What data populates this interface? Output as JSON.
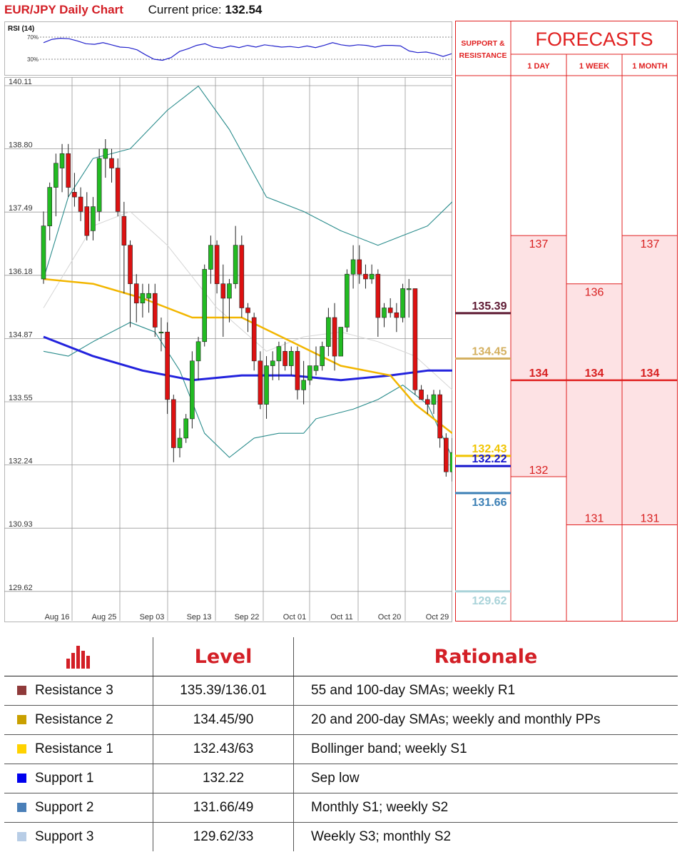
{
  "header": {
    "pair": "EUR/JPY Daily Chart",
    "current_label": "Current price:",
    "current_value": "132.54"
  },
  "rsi": {
    "label": "RSI (14)",
    "level_high": "70%",
    "level_low": "30%",
    "values": [
      60,
      66,
      68,
      67,
      63,
      58,
      57,
      60,
      56,
      52,
      51,
      47,
      38,
      30,
      28,
      33,
      44,
      49,
      55,
      58,
      52,
      50,
      54,
      51,
      55,
      52,
      56,
      54,
      52,
      53,
      51,
      54,
      51,
      55,
      60,
      56,
      54,
      56,
      55,
      52,
      55,
      55,
      54,
      45,
      42,
      43,
      40,
      35,
      40
    ]
  },
  "chart_data": {
    "type": "candlestick",
    "title": "EUR/JPY Daily Chart",
    "x_tick_labels": [
      "Aug 16",
      "Aug 25",
      "Sep 03",
      "Sep 13",
      "Sep 22",
      "Oct 01",
      "Oct 11",
      "Oct 20",
      "Oct 29"
    ],
    "y_tick_labels": [
      "140.11",
      "138.80",
      "137.49",
      "136.18",
      "134.87",
      "133.55",
      "132.24",
      "130.93",
      "129.62"
    ],
    "ylim": [
      129.5,
      140.2
    ],
    "grid": true,
    "candles": [
      {
        "o": 136.1,
        "h": 137.5,
        "l": 136.0,
        "c": 137.2
      },
      {
        "o": 137.2,
        "h": 138.1,
        "l": 136.9,
        "c": 138.0
      },
      {
        "o": 138.0,
        "h": 138.7,
        "l": 137.4,
        "c": 138.5
      },
      {
        "o": 138.4,
        "h": 138.9,
        "l": 137.9,
        "c": 138.7
      },
      {
        "o": 138.7,
        "h": 138.9,
        "l": 137.8,
        "c": 138.0
      },
      {
        "o": 137.9,
        "h": 138.3,
        "l": 137.6,
        "c": 137.8
      },
      {
        "o": 137.8,
        "h": 138.0,
        "l": 137.3,
        "c": 137.5
      },
      {
        "o": 137.6,
        "h": 137.9,
        "l": 136.9,
        "c": 137.0
      },
      {
        "o": 137.1,
        "h": 137.8,
        "l": 136.9,
        "c": 137.6
      },
      {
        "o": 137.5,
        "h": 138.8,
        "l": 137.3,
        "c": 138.6
      },
      {
        "o": 138.6,
        "h": 139.0,
        "l": 138.2,
        "c": 138.8
      },
      {
        "o": 138.6,
        "h": 138.8,
        "l": 138.1,
        "c": 138.4
      },
      {
        "o": 138.4,
        "h": 138.6,
        "l": 137.4,
        "c": 137.5
      },
      {
        "o": 137.4,
        "h": 137.7,
        "l": 135.8,
        "c": 136.8
      },
      {
        "o": 136.8,
        "h": 136.9,
        "l": 135.1,
        "c": 136.0
      },
      {
        "o": 136.0,
        "h": 136.2,
        "l": 135.2,
        "c": 135.6
      },
      {
        "o": 135.6,
        "h": 136.0,
        "l": 135.3,
        "c": 135.8
      },
      {
        "o": 135.7,
        "h": 136.0,
        "l": 135.4,
        "c": 135.8
      },
      {
        "o": 135.8,
        "h": 136.0,
        "l": 134.9,
        "c": 135.1
      },
      {
        "o": 135.0,
        "h": 135.3,
        "l": 134.6,
        "c": 135.0
      },
      {
        "o": 135.0,
        "h": 135.2,
        "l": 133.3,
        "c": 133.6
      },
      {
        "o": 133.6,
        "h": 133.7,
        "l": 132.3,
        "c": 132.6
      },
      {
        "o": 132.6,
        "h": 133.0,
        "l": 132.4,
        "c": 132.8
      },
      {
        "o": 132.8,
        "h": 133.3,
        "l": 132.7,
        "c": 133.2
      },
      {
        "o": 133.2,
        "h": 134.6,
        "l": 133.0,
        "c": 134.4
      },
      {
        "o": 134.4,
        "h": 134.9,
        "l": 134.0,
        "c": 134.8
      },
      {
        "o": 134.8,
        "h": 136.4,
        "l": 134.7,
        "c": 136.3
      },
      {
        "o": 136.3,
        "h": 137.0,
        "l": 136.0,
        "c": 136.8
      },
      {
        "o": 136.8,
        "h": 136.9,
        "l": 135.8,
        "c": 136.0
      },
      {
        "o": 136.0,
        "h": 136.4,
        "l": 134.9,
        "c": 135.7
      },
      {
        "o": 135.7,
        "h": 136.1,
        "l": 135.2,
        "c": 136.0
      },
      {
        "o": 136.0,
        "h": 137.2,
        "l": 135.9,
        "c": 136.8
      },
      {
        "o": 136.8,
        "h": 137.0,
        "l": 135.3,
        "c": 135.5
      },
      {
        "o": 135.5,
        "h": 135.6,
        "l": 135.0,
        "c": 135.4
      },
      {
        "o": 135.3,
        "h": 135.4,
        "l": 134.2,
        "c": 134.4
      },
      {
        "o": 134.4,
        "h": 134.6,
        "l": 133.4,
        "c": 133.5
      },
      {
        "o": 133.5,
        "h": 134.5,
        "l": 133.2,
        "c": 134.3
      },
      {
        "o": 134.3,
        "h": 134.6,
        "l": 134.0,
        "c": 134.4
      },
      {
        "o": 134.4,
        "h": 134.8,
        "l": 134.0,
        "c": 134.7
      },
      {
        "o": 134.6,
        "h": 134.8,
        "l": 134.2,
        "c": 134.3
      },
      {
        "o": 134.3,
        "h": 134.7,
        "l": 134.1,
        "c": 134.6
      },
      {
        "o": 134.6,
        "h": 134.7,
        "l": 133.6,
        "c": 133.8
      },
      {
        "o": 133.8,
        "h": 134.4,
        "l": 133.5,
        "c": 134.0
      },
      {
        "o": 134.0,
        "h": 134.3,
        "l": 133.9,
        "c": 134.3
      },
      {
        "o": 134.2,
        "h": 134.7,
        "l": 134.1,
        "c": 134.3
      },
      {
        "o": 134.3,
        "h": 134.8,
        "l": 134.2,
        "c": 134.7
      },
      {
        "o": 134.7,
        "h": 135.5,
        "l": 134.5,
        "c": 135.3
      },
      {
        "o": 135.3,
        "h": 135.6,
        "l": 134.2,
        "c": 134.5
      },
      {
        "o": 134.5,
        "h": 135.1,
        "l": 134.5,
        "c": 135.1
      },
      {
        "o": 135.1,
        "h": 136.3,
        "l": 135.0,
        "c": 136.2
      },
      {
        "o": 136.2,
        "h": 136.8,
        "l": 135.9,
        "c": 136.5
      },
      {
        "o": 136.5,
        "h": 136.8,
        "l": 136.0,
        "c": 136.2
      },
      {
        "o": 136.2,
        "h": 136.4,
        "l": 135.9,
        "c": 136.1
      },
      {
        "o": 136.1,
        "h": 136.4,
        "l": 136.0,
        "c": 136.2
      },
      {
        "o": 136.2,
        "h": 136.3,
        "l": 134.9,
        "c": 135.3
      },
      {
        "o": 135.3,
        "h": 135.6,
        "l": 135.1,
        "c": 135.5
      },
      {
        "o": 135.5,
        "h": 135.7,
        "l": 135.3,
        "c": 135.4
      },
      {
        "o": 135.4,
        "h": 135.6,
        "l": 135.0,
        "c": 135.3
      },
      {
        "o": 135.3,
        "h": 136.0,
        "l": 135.2,
        "c": 135.9
      },
      {
        "o": 135.9,
        "h": 136.1,
        "l": 135.3,
        "c": 135.9
      },
      {
        "o": 135.9,
        "h": 135.9,
        "l": 133.7,
        "c": 133.8
      },
      {
        "o": 133.8,
        "h": 133.9,
        "l": 133.6,
        "c": 133.6
      },
      {
        "o": 133.6,
        "h": 133.7,
        "l": 133.3,
        "c": 133.5
      },
      {
        "o": 133.5,
        "h": 133.8,
        "l": 133.3,
        "c": 133.7
      },
      {
        "o": 133.7,
        "h": 133.8,
        "l": 132.6,
        "c": 132.8
      },
      {
        "o": 132.8,
        "h": 132.9,
        "l": 132.0,
        "c": 132.1
      },
      {
        "o": 132.1,
        "h": 132.8,
        "l": 131.9,
        "c": 132.5
      }
    ],
    "sma_yellow": [
      [
        0,
        136.1
      ],
      [
        8,
        136.0
      ],
      [
        16,
        135.7
      ],
      [
        24,
        135.3
      ],
      [
        32,
        135.3
      ],
      [
        40,
        134.8
      ],
      [
        48,
        134.3
      ],
      [
        56,
        134.1
      ],
      [
        60,
        133.5
      ],
      [
        66,
        132.9
      ]
    ],
    "sma_blue": [
      [
        0,
        134.9
      ],
      [
        8,
        134.5
      ],
      [
        16,
        134.2
      ],
      [
        24,
        134.0
      ],
      [
        32,
        134.1
      ],
      [
        40,
        134.1
      ],
      [
        48,
        134.0
      ],
      [
        56,
        134.1
      ],
      [
        62,
        134.2
      ],
      [
        66,
        134.2
      ]
    ],
    "boll_upper": [
      [
        0,
        136.1
      ],
      [
        4,
        137.8
      ],
      [
        8,
        138.6
      ],
      [
        14,
        138.8
      ],
      [
        20,
        139.6
      ],
      [
        25,
        140.1
      ],
      [
        30,
        139.2
      ],
      [
        36,
        137.8
      ],
      [
        42,
        137.5
      ],
      [
        48,
        137.1
      ],
      [
        54,
        136.8
      ],
      [
        58,
        137.0
      ],
      [
        62,
        137.2
      ],
      [
        66,
        137.7
      ]
    ],
    "boll_lower": [
      [
        0,
        134.6
      ],
      [
        4,
        134.5
      ],
      [
        8,
        134.8
      ],
      [
        14,
        135.2
      ],
      [
        18,
        135.0
      ],
      [
        22,
        134.2
      ],
      [
        26,
        132.9
      ],
      [
        30,
        132.4
      ],
      [
        34,
        132.8
      ],
      [
        38,
        132.9
      ],
      [
        42,
        132.9
      ],
      [
        44,
        133.2
      ],
      [
        50,
        133.4
      ],
      [
        54,
        133.6
      ],
      [
        58,
        133.9
      ],
      [
        62,
        133.5
      ],
      [
        66,
        132.4
      ]
    ],
    "support_resistance": [
      {
        "label": "135.39",
        "value": 135.39,
        "color": "#5e1a33"
      },
      {
        "label": "134.45",
        "value": 134.45,
        "color": "#d4b060"
      },
      {
        "label": "132.43",
        "value": 132.43,
        "color": "#f0c400"
      },
      {
        "label": "132.22",
        "value": 132.22,
        "color": "#1515cc"
      },
      {
        "label": "131.66",
        "value": 131.66,
        "color": "#3b7fb5"
      },
      {
        "label": "129.62",
        "value": 129.62,
        "color": "#a9d3d9"
      }
    ]
  },
  "forecasts": {
    "sr_header_line1": "SUPPORT &",
    "sr_header_line2": "RESISTANCE",
    "title": "FORECASTS",
    "columns": [
      {
        "label": "1 DAY",
        "high": "137",
        "high_value": 137,
        "low": "132",
        "low_value": 132
      },
      {
        "label": "1 WEEK",
        "high": "136",
        "high_value": 136,
        "low": "131",
        "low_value": 131
      },
      {
        "label": "1 MONTH",
        "high": "137",
        "high_value": 137,
        "low": "131",
        "low_value": 131
      }
    ],
    "center_label": "134",
    "center_value": 134
  },
  "levels_table": {
    "header_level": "Level",
    "header_rationale": "Rationale",
    "rows": [
      {
        "name": "Resistance 3",
        "level": "135.39/136.01",
        "rationale": "55 and 100-day SMAs; weekly R1",
        "color": "#8f3a3a"
      },
      {
        "name": "Resistance 2",
        "level": "134.45/90",
        "rationale": "20 and 200-day SMAs; weekly and monthly PPs",
        "color": "#c9a000"
      },
      {
        "name": "Resistance 1",
        "level": "132.43/63",
        "rationale": "Bollinger band; weekly S1",
        "color": "#ffd200"
      },
      {
        "name": "Support 1",
        "level": "132.22",
        "rationale": "Sep low",
        "color": "#0000ee"
      },
      {
        "name": "Support 2",
        "level": "131.66/49",
        "rationale": "Monthly S1; weekly S2",
        "color": "#4a7fb8"
      },
      {
        "name": "Support 3",
        "level": "129.62/33",
        "rationale": "Weekly S3; monthly S2",
        "color": "#b8cde6"
      }
    ]
  }
}
